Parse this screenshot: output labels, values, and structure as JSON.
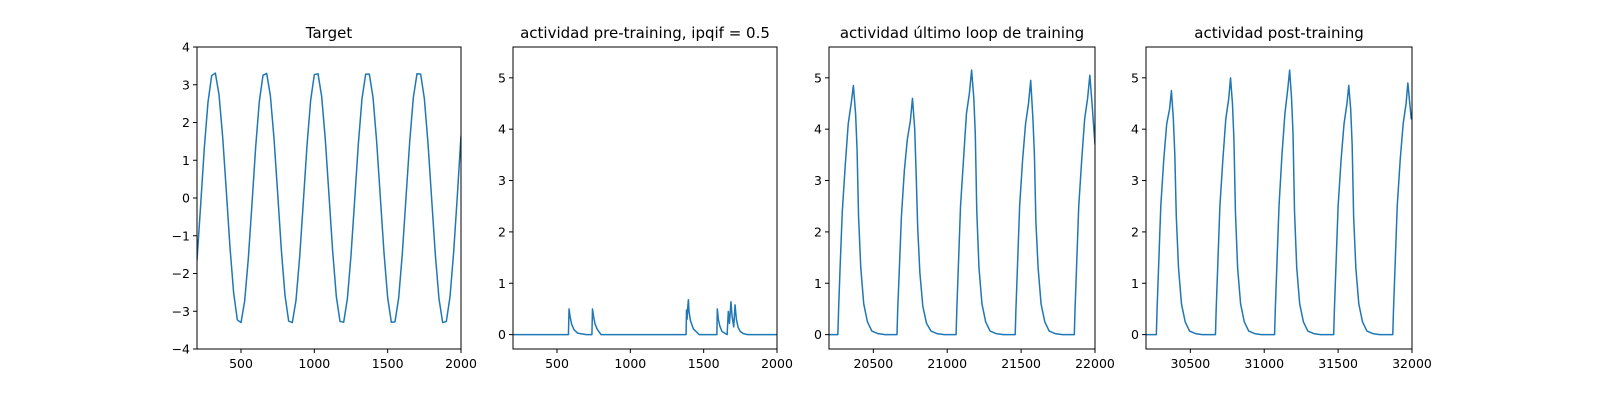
{
  "chart_data": [
    {
      "type": "line",
      "title": "Target",
      "xlabel": "",
      "ylabel": "",
      "xlim": [
        200,
        2000
      ],
      "ylim": [
        -4,
        4
      ],
      "xticks": [
        500,
        1000,
        1500,
        2000
      ],
      "yticks": [
        -4,
        -3,
        -2,
        -1,
        0,
        1,
        2,
        3,
        4
      ],
      "grid": false,
      "color": "#1f77b4",
      "series": [
        {
          "x": [
            200,
            225,
            250,
            275,
            300,
            325,
            350,
            375,
            400,
            425,
            450,
            475,
            500,
            525,
            550,
            575,
            600,
            625,
            650,
            675,
            700,
            725,
            750,
            775,
            800,
            825,
            850,
            875,
            900,
            925,
            950,
            975,
            1000,
            1025,
            1050,
            1075,
            1100,
            1125,
            1150,
            1175,
            1200,
            1225,
            1250,
            1275,
            1300,
            1325,
            1350,
            1375,
            1400,
            1425,
            1450,
            1475,
            1500,
            1525,
            1550,
            1575,
            1600,
            1625,
            1650,
            1675,
            1700,
            1725,
            1750,
            1775,
            1800,
            1825,
            1850,
            1875,
            1900,
            1925,
            1950,
            1975,
            2000
          ],
          "y": [
            -1.65,
            -0.18,
            1.33,
            2.54,
            3.24,
            3.31,
            2.74,
            1.62,
            0.18,
            -1.31,
            -2.52,
            -3.23,
            -3.3,
            -2.73,
            -1.6,
            -0.15,
            1.35,
            2.56,
            3.25,
            3.3,
            2.72,
            1.58,
            0.12,
            -1.37,
            -2.58,
            -3.26,
            -3.3,
            -2.71,
            -1.56,
            -0.1,
            1.39,
            2.59,
            3.27,
            3.29,
            2.69,
            1.54,
            0.07,
            -1.41,
            -2.61,
            -3.27,
            -3.29,
            -2.68,
            -1.52,
            -0.05,
            1.43,
            2.63,
            3.28,
            3.28,
            2.67,
            1.49,
            0.02,
            -1.45,
            -2.64,
            -3.29,
            -3.28,
            -2.65,
            -1.47,
            0.01,
            1.48,
            2.66,
            3.29,
            3.28,
            2.64,
            1.45,
            -0.03,
            -1.5,
            -2.67,
            -3.3,
            -3.27,
            -2.62,
            -1.43,
            0.06,
            1.65
          ]
        }
      ]
    },
    {
      "type": "line",
      "title": "actividad pre-training, ipqif = 0.5",
      "xlabel": "",
      "ylabel": "",
      "xlim": [
        200,
        2000
      ],
      "ylim": [
        -0.28,
        5.6
      ],
      "xticks": [
        500,
        1000,
        1500,
        2000
      ],
      "yticks": [
        0,
        1,
        2,
        3,
        4,
        5
      ],
      "grid": false,
      "color": "#1f77b4",
      "series": [
        {
          "x": [
            200,
            578,
            582,
            590,
            600,
            615,
            640,
            700,
            738,
            742,
            750,
            760,
            775,
            800,
            1380,
            1383,
            1387,
            1392,
            1396,
            1400,
            1410,
            1430,
            1470,
            1590,
            1593,
            1600,
            1610,
            1625,
            1660,
            1668,
            1676,
            1686,
            1694,
            1705,
            1714,
            1723,
            1735,
            1750,
            1770,
            1800,
            2000
          ],
          "y": [
            0,
            0,
            0.5,
            0.34,
            0.2,
            0.1,
            0.03,
            0,
            0,
            0.5,
            0.34,
            0.2,
            0.1,
            0,
            0,
            0.48,
            0.3,
            0.55,
            0.68,
            0.45,
            0.27,
            0.11,
            0,
            0,
            0.5,
            0.3,
            0.17,
            0.06,
            0,
            0.45,
            0.22,
            0.64,
            0.35,
            0.15,
            0.58,
            0.3,
            0.14,
            0.06,
            0.02,
            0,
            0
          ]
        }
      ]
    },
    {
      "type": "line",
      "title": "actividad último loop de training",
      "xlabel": "",
      "ylabel": "",
      "xlim": [
        20200,
        22000
      ],
      "ylim": [
        -0.28,
        5.6
      ],
      "xticks": [
        20500,
        21000,
        21500,
        22000
      ],
      "yticks": [
        0,
        1,
        2,
        3,
        4,
        5
      ],
      "grid": false,
      "color": "#1f77b4",
      "series": [
        {
          "x": [
            20200,
            20260,
            20265,
            20275,
            20290,
            20310,
            20330,
            20350,
            20365,
            20380,
            20390,
            20400,
            20415,
            20435,
            20460,
            20490,
            20530,
            20580,
            20660,
            20665,
            20675,
            20690,
            20710,
            20730,
            20750,
            20765,
            20780,
            20790,
            20800,
            20815,
            20835,
            20860,
            20890,
            20930,
            20980,
            21060,
            21065,
            21075,
            21090,
            21110,
            21130,
            21150,
            21165,
            21180,
            21190,
            21200,
            21215,
            21235,
            21260,
            21290,
            21330,
            21380,
            21460,
            21465,
            21475,
            21490,
            21510,
            21530,
            21550,
            21565,
            21580,
            21590,
            21600,
            21615,
            21635,
            21660,
            21690,
            21730,
            21780,
            21860,
            21865,
            21875,
            21890,
            21910,
            21930,
            21950,
            21965,
            21980,
            21990,
            22000
          ],
          "y": [
            0,
            0,
            0.5,
            1.3,
            2.4,
            3.3,
            4.1,
            4.5,
            4.85,
            4.3,
            3.6,
            2.3,
            1.3,
            0.6,
            0.25,
            0.07,
            0.02,
            0,
            0,
            0.5,
            1.2,
            2.3,
            3.2,
            3.8,
            4.15,
            4.6,
            4.0,
            3.1,
            2.1,
            1.2,
            0.55,
            0.22,
            0.07,
            0.02,
            0,
            0,
            0.5,
            1.3,
            2.5,
            3.4,
            4.3,
            4.7,
            5.15,
            4.6,
            3.9,
            2.4,
            1.3,
            0.6,
            0.25,
            0.07,
            0.02,
            0,
            0,
            0.5,
            1.3,
            2.5,
            3.4,
            4.1,
            4.5,
            4.95,
            4.2,
            3.5,
            2.2,
            1.3,
            0.6,
            0.25,
            0.07,
            0.02,
            0,
            0,
            0.5,
            1.3,
            2.5,
            3.4,
            4.2,
            4.6,
            5.05,
            4.5,
            4.1,
            3.7
          ]
        }
      ]
    },
    {
      "type": "line",
      "title": "actividad post-training",
      "xlabel": "",
      "ylabel": "",
      "xlim": [
        30200,
        32000
      ],
      "ylim": [
        -0.28,
        5.6
      ],
      "xticks": [
        30500,
        31000,
        31500,
        32000
      ],
      "yticks": [
        0,
        1,
        2,
        3,
        4,
        5
      ],
      "grid": false,
      "color": "#1f77b4",
      "series": [
        {
          "x": [
            30200,
            30270,
            30275,
            30285,
            30300,
            30320,
            30340,
            30360,
            30372,
            30385,
            30395,
            30405,
            30420,
            30440,
            30465,
            30495,
            30535,
            30580,
            30670,
            30675,
            30685,
            30700,
            30720,
            30740,
            30760,
            30772,
            30785,
            30795,
            30805,
            30820,
            30840,
            30865,
            30895,
            30935,
            30980,
            31070,
            31075,
            31085,
            31100,
            31120,
            31140,
            31160,
            31172,
            31185,
            31195,
            31205,
            31220,
            31240,
            31265,
            31295,
            31335,
            31380,
            31470,
            31475,
            31485,
            31500,
            31520,
            31540,
            31560,
            31572,
            31585,
            31595,
            31605,
            31620,
            31640,
            31665,
            31695,
            31735,
            31780,
            31870,
            31875,
            31885,
            31900,
            31920,
            31940,
            31960,
            31972,
            31985,
            31995,
            32000
          ],
          "y": [
            0,
            0,
            0.5,
            1.3,
            2.5,
            3.4,
            4.1,
            4.4,
            4.75,
            4.2,
            3.5,
            2.3,
            1.3,
            0.6,
            0.25,
            0.07,
            0.02,
            0,
            0,
            0.5,
            1.3,
            2.5,
            3.4,
            4.2,
            4.6,
            5.0,
            4.5,
            3.8,
            2.4,
            1.3,
            0.6,
            0.25,
            0.07,
            0.02,
            0,
            0,
            0.5,
            1.3,
            2.5,
            3.5,
            4.3,
            4.8,
            5.15,
            4.6,
            3.9,
            2.4,
            1.3,
            0.6,
            0.25,
            0.07,
            0.02,
            0,
            0,
            0.5,
            1.3,
            2.5,
            3.4,
            4.1,
            4.5,
            4.85,
            4.4,
            3.7,
            2.3,
            1.3,
            0.6,
            0.25,
            0.07,
            0.02,
            0,
            0,
            0.5,
            1.3,
            2.5,
            3.4,
            4.1,
            4.5,
            4.9,
            4.5,
            4.2,
            4.2
          ]
        }
      ]
    }
  ]
}
